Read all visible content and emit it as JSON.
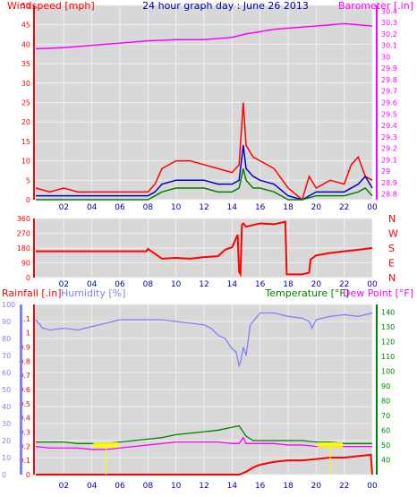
{
  "colors": {
    "background": "#ffffff",
    "panel": "#d8d8d8",
    "grid": "#f0f0f0",
    "wind_gust": "#ff0000",
    "wind_avg": "#0000cc",
    "wind_min": "#008000",
    "barometer": "#ff00ff",
    "direction": "#ff0000",
    "rainfall": "#ff0000",
    "humidity": "#8080ff",
    "temperature": "#008000",
    "dew_point": "#ff00ff",
    "title": "#0000aa",
    "sun_marker": "#ffff00"
  },
  "header": {
    "windspeed_label": "Windspeed [mph]",
    "title": "24 hour graph day : June 26 2013",
    "barometer_label": "Barometer [.in]"
  },
  "x_ticks": [
    "02",
    "04",
    "06",
    "08",
    "10",
    "12",
    "14",
    "16",
    "18",
    "20",
    "22",
    "00"
  ],
  "chart_data": [
    {
      "type": "line",
      "id": "wind_baro",
      "y_left": {
        "label": "Windspeed [mph]",
        "ticks": [
          0,
          5,
          10,
          15,
          20,
          25,
          30,
          35,
          40,
          45,
          50
        ],
        "range": [
          0,
          50
        ]
      },
      "y_right": {
        "label": "Barometer [.in]",
        "ticks": [
          "28.8",
          "28.9",
          "29",
          "29.1",
          "29.2",
          "29.3",
          "29.4",
          "29.5",
          "29.6",
          "29.7",
          "29.8",
          "29.9",
          "30",
          "30.1",
          "30.2",
          "30.3",
          "30.4"
        ],
        "range": [
          28.75,
          30.45
        ]
      },
      "series": [
        {
          "key": "gust",
          "axis": "left",
          "x": [
            0,
            1,
            2,
            3,
            4,
            5,
            6,
            7,
            8,
            8.5,
            9,
            10,
            11,
            12,
            13,
            14,
            14.5,
            14.8,
            15,
            15.5,
            16,
            17,
            18,
            19,
            19.5,
            20,
            21,
            22,
            22.5,
            23,
            23.5,
            24
          ],
          "values": [
            3,
            2,
            3,
            2,
            2,
            2,
            2,
            2,
            2,
            4,
            8,
            10,
            10,
            9,
            8,
            7,
            9,
            25,
            14,
            11,
            10,
            8,
            3,
            0,
            6,
            3,
            5,
            4,
            9,
            11,
            6,
            5
          ]
        },
        {
          "key": "avg",
          "axis": "left",
          "x": [
            0,
            2,
            4,
            6,
            8,
            8.5,
            9,
            10,
            11,
            12,
            13,
            14,
            14.5,
            14.8,
            15,
            15.5,
            16,
            17,
            18,
            19,
            20,
            21,
            22,
            23,
            23.5,
            24
          ],
          "values": [
            1,
            1,
            1,
            1,
            1,
            2,
            4,
            5,
            5,
            5,
            4,
            4,
            5,
            14,
            8,
            6,
            5,
            4,
            1,
            0,
            2,
            2,
            2,
            4,
            6,
            3
          ]
        },
        {
          "key": "min",
          "axis": "left",
          "x": [
            0,
            2,
            4,
            6,
            8,
            8.5,
            9,
            10,
            11,
            12,
            13,
            14,
            14.5,
            14.8,
            15,
            15.5,
            16,
            17,
            18,
            19,
            20,
            21,
            22,
            23,
            23.5,
            24
          ],
          "values": [
            0,
            0,
            0,
            0,
            0,
            1,
            2,
            3,
            3,
            3,
            2,
            2,
            3,
            8,
            5,
            3,
            3,
            2,
            0,
            0,
            1,
            1,
            1,
            2,
            3,
            1
          ]
        },
        {
          "key": "barometer",
          "axis": "right",
          "x": [
            0,
            2,
            4,
            6,
            8,
            10,
            12,
            13,
            14,
            15,
            16,
            17,
            18,
            19,
            20,
            21,
            22,
            23,
            24
          ],
          "values": [
            30.07,
            30.08,
            30.1,
            30.12,
            30.14,
            30.15,
            30.15,
            30.16,
            30.17,
            30.2,
            30.22,
            30.24,
            30.25,
            30.26,
            30.27,
            30.28,
            30.29,
            30.28,
            30.27
          ]
        }
      ]
    },
    {
      "type": "line",
      "id": "direction",
      "y_left": {
        "ticks": [
          0,
          90,
          180,
          270,
          360
        ],
        "range": [
          0,
          360
        ]
      },
      "y_right_labels": [
        "N",
        "W",
        "S",
        "E",
        "N"
      ],
      "series": [
        {
          "key": "direction",
          "x": [
            0,
            2,
            4,
            6,
            7.9,
            8,
            9,
            10,
            11,
            12,
            13,
            13.5,
            14,
            14.4,
            14.5,
            14.6,
            14.7,
            14.8,
            15,
            15.5,
            16,
            17,
            17.8,
            17.9,
            18,
            18.5,
            19,
            19.5,
            19.6,
            20,
            21,
            22,
            23,
            24
          ],
          "values": [
            160,
            160,
            160,
            160,
            160,
            175,
            115,
            120,
            115,
            125,
            130,
            170,
            185,
            260,
            35,
            20,
            320,
            330,
            310,
            320,
            330,
            325,
            340,
            20,
            20,
            20,
            20,
            30,
            110,
            135,
            150,
            160,
            170,
            180
          ]
        }
      ]
    },
    {
      "type": "line",
      "id": "rain_hum_temp",
      "y_left_rain": {
        "label": "Rainfall [.in]",
        "ticks": [
          "0",
          "0.1",
          "0.2",
          "0.3",
          "0.4",
          "0.5",
          "0.6",
          "0.7",
          "0.8",
          "0.9",
          "1",
          "1.1"
        ],
        "range": [
          0,
          1.2
        ]
      },
      "y_left_humidity": {
        "label": "Humidity [%]",
        "ticks": [
          0,
          10,
          20,
          30,
          40,
          50,
          60,
          70,
          80,
          90,
          100
        ],
        "range": [
          0,
          100
        ]
      },
      "y_right": {
        "label": "Temperature [°F]",
        "label2": "Dew Point [°F]",
        "ticks": [
          40,
          50,
          60,
          70,
          80,
          90,
          100,
          110,
          120,
          130,
          140
        ],
        "range": [
          30,
          145
        ]
      },
      "series": [
        {
          "key": "humidity",
          "axis": "humidity",
          "x": [
            0,
            0.5,
            1,
            2,
            3,
            4,
            5,
            6,
            7,
            8,
            9,
            10,
            11,
            12,
            12.5,
            13,
            13.5,
            14,
            14.3,
            14.5,
            14.6,
            14.8,
            15,
            15.3,
            16,
            17,
            18,
            19,
            19.5,
            19.7,
            20,
            21,
            22,
            23,
            24
          ],
          "values": [
            91,
            86,
            85,
            86,
            85,
            87,
            89,
            91,
            91,
            91,
            91,
            90,
            89,
            88,
            86,
            82,
            80,
            74,
            72,
            64,
            66,
            75,
            70,
            88,
            95,
            95,
            93,
            92,
            90,
            86,
            91,
            93,
            94,
            93,
            95
          ]
        },
        {
          "key": "temperature",
          "axis": "right",
          "x": [
            0,
            1,
            2,
            3,
            4,
            5,
            6,
            7,
            8,
            9,
            10,
            11,
            12,
            13,
            14,
            14.5,
            15,
            15.5,
            16,
            17,
            18,
            19,
            20,
            21,
            22,
            23,
            24
          ],
          "values": [
            52,
            52,
            52,
            51,
            51,
            51,
            52,
            53,
            54,
            55,
            57,
            58,
            59,
            60,
            62,
            63,
            56,
            53,
            53,
            53,
            53,
            53,
            52,
            52,
            51,
            51,
            51
          ]
        },
        {
          "key": "dew_point",
          "axis": "right",
          "x": [
            0,
            1,
            2,
            3,
            4,
            5,
            6,
            7,
            8,
            9,
            10,
            11,
            12,
            13,
            14,
            14.5,
            14.8,
            15,
            15.5,
            16,
            17,
            18,
            19,
            20,
            21,
            22,
            23,
            24
          ],
          "values": [
            49,
            48,
            48,
            48,
            47,
            47,
            48,
            49,
            50,
            51,
            52,
            52,
            52,
            52,
            51,
            51,
            55,
            51,
            51,
            51,
            51,
            50,
            50,
            49,
            49,
            49,
            49,
            49
          ]
        },
        {
          "key": "rainfall",
          "axis": "rain",
          "x": [
            0,
            2,
            4,
            6,
            8,
            10,
            12,
            13,
            14,
            14.5,
            15,
            15.5,
            16,
            17,
            18,
            19,
            20,
            21,
            22,
            23,
            23.9,
            24
          ],
          "values": [
            0,
            0,
            0,
            0,
            0,
            0,
            0,
            0,
            0,
            0,
            0.02,
            0.05,
            0.07,
            0.09,
            0.1,
            0.1,
            0.11,
            0.12,
            0.12,
            0.13,
            0.14,
            0
          ]
        }
      ],
      "markers": [
        {
          "key": "sunrise",
          "x": 5.0
        },
        {
          "key": "sunset",
          "x": 21.0
        }
      ]
    }
  ]
}
